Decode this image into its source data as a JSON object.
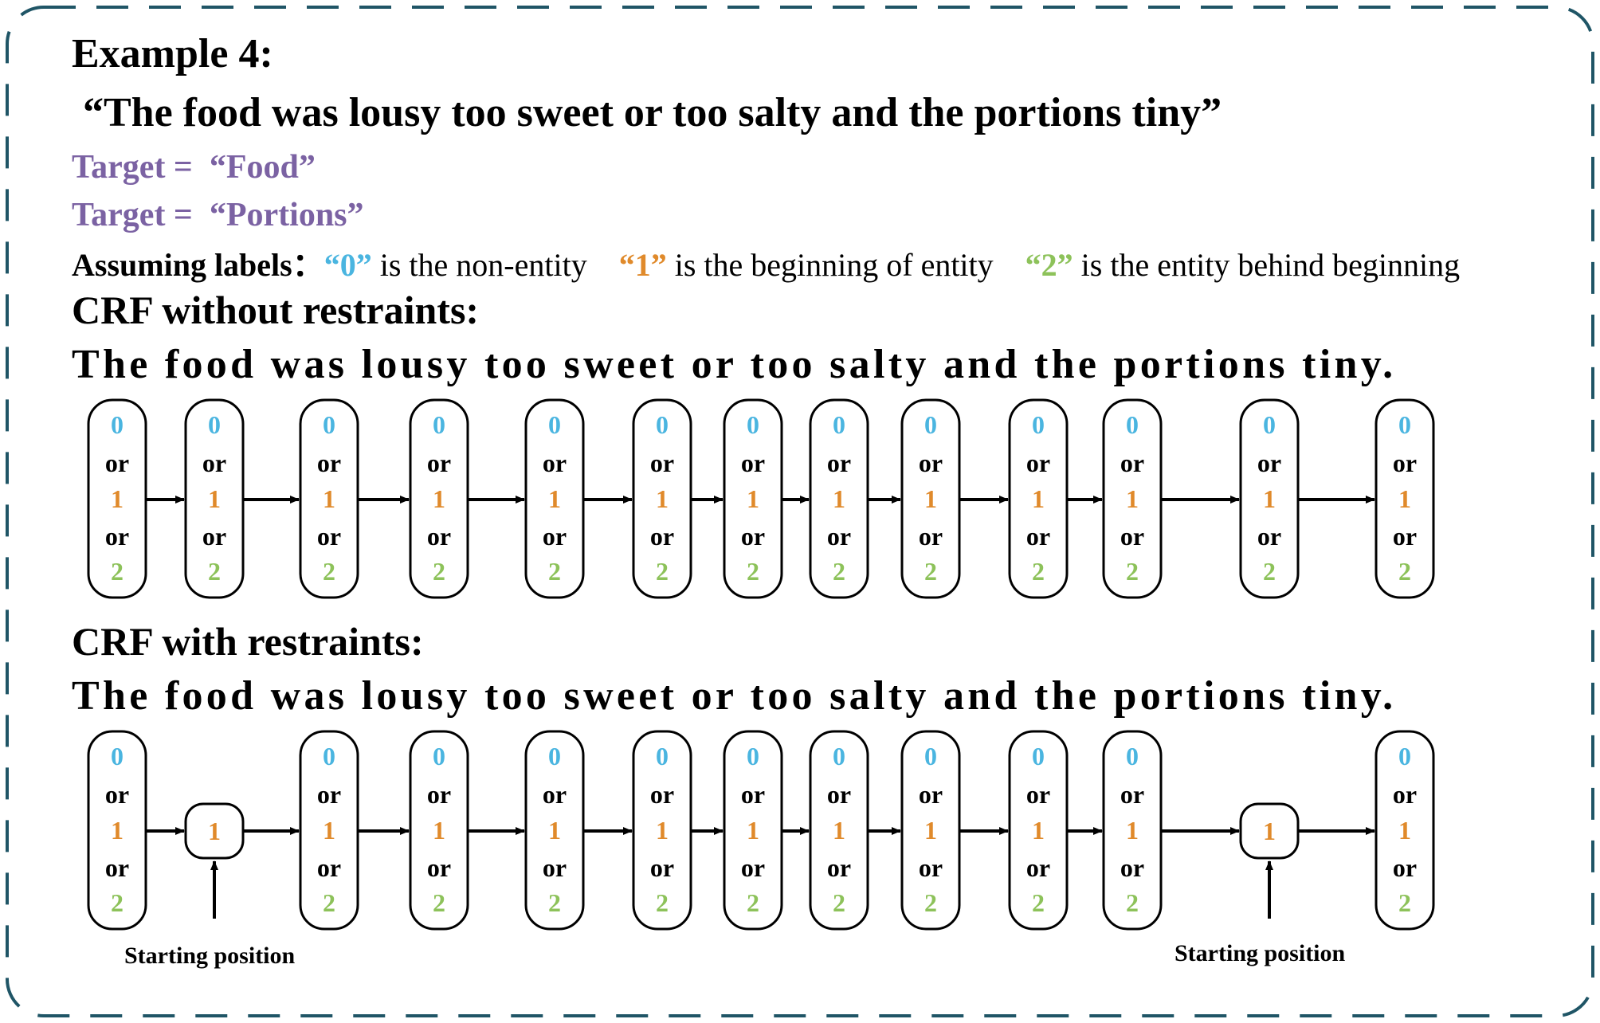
{
  "title": "Example 4:",
  "sentence": "“The food was lousy  too sweet or too salty and the portions tiny”",
  "targets": [
    {
      "prefix": "Target =",
      "value": "“Food”"
    },
    {
      "prefix": "Target =",
      "value": "“Portions”"
    }
  ],
  "labels": {
    "prefix": "Assuming labels：",
    "label0_code": "“0”",
    "label0_text": " is the non-entity",
    "label1_code": "“1”",
    "label1_text": " is the beginning of entity",
    "label2_code": "“2”",
    "label2_text": " is the entity behind beginning"
  },
  "crf_without": {
    "heading": "CRF without restraints:",
    "sentence": "The food was lousy  too sweet or too salty and the portions tiny."
  },
  "crf_with": {
    "heading": "CRF with restraints:",
    "sentence": "The food was lousy  too sweet or too salty and the portions tiny.",
    "fixed_label": "1",
    "fixed_at": [
      1,
      11
    ]
  },
  "token_count": 13,
  "node_text": {
    "zero": "0",
    "or": "or",
    "one": "1",
    "two": "2"
  },
  "starting_caption": "Starting position",
  "colors": {
    "label0": "#4ab5e0",
    "label1": "#e08a2b",
    "label2": "#8dc25a",
    "target": "#7b62a3",
    "frame": "#1f5566"
  }
}
